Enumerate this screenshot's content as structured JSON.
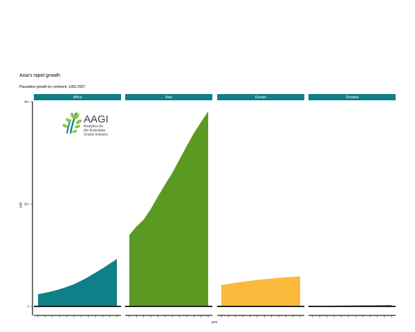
{
  "title": "Asia's rapid growth",
  "subtitle": "Population growth by continent, 1952-2007",
  "logo": {
    "name": "AAGI",
    "lines": [
      "Analytics for",
      "the Australian",
      "Grains Industry"
    ]
  },
  "colors": {
    "strip": "#0f7f88",
    "axis": "#222222",
    "logo_green": "#8cc63f",
    "logo_teal": "#1a8b94"
  },
  "chart_data": {
    "type": "area",
    "facet_by": "continent",
    "xlabel": "year",
    "ylabel": "pop",
    "xlim": [
      1952,
      2007
    ],
    "x_ticks": [
      1952,
      1957,
      1962,
      1967,
      1972,
      1977,
      1982,
      1987,
      1992,
      1997,
      2002,
      2007
    ],
    "ylim": [
      0,
      4000000000
    ],
    "y_ticks": [
      {
        "value": 0,
        "label": "0"
      },
      {
        "value": 2000000000,
        "label": "2bn"
      },
      {
        "value": 4000000000,
        "label": "4bn"
      }
    ],
    "x": [
      1952,
      1957,
      1962,
      1967,
      1972,
      1977,
      1982,
      1987,
      1992,
      1997,
      2002,
      2007
    ],
    "series": [
      {
        "name": "Africa",
        "color": "#0f7f88",
        "values": [
          237640501,
          264837738,
          296516865,
          335289489,
          379879541,
          433061021,
          499348587,
          574834110,
          659081517,
          743832984,
          833723916,
          929539692
        ]
      },
      {
        "name": "Asia",
        "color": "#5a9a23",
        "values": [
          1395357351,
          1562780599,
          1696357182,
          1905662900,
          2150972248,
          2384513556,
          2610135582,
          2871220762,
          3133292191,
          3383285500,
          3601802203,
          3811953827
        ]
      },
      {
        "name": "Europe",
        "color": "#fbba3c",
        "values": [
          418120846,
          437890351,
          460355155,
          481178958,
          500635059,
          517164531,
          531266901,
          543094160,
          558142797,
          568944148,
          578223869,
          586098529
        ]
      },
      {
        "name": "Oceania",
        "color": "#3d4b5a",
        "values": [
          10686006,
          11941976,
          13283518,
          14600414,
          16106100,
          17239000,
          18394850,
          19574415,
          20919651,
          22241430,
          23454829,
          24549947
        ]
      }
    ]
  }
}
